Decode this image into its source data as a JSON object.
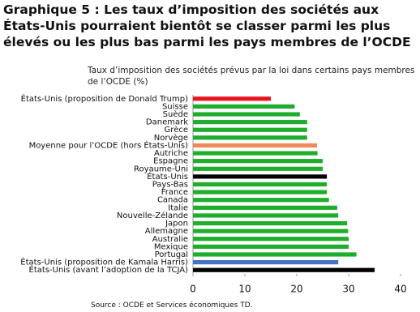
{
  "chart_data": {
    "type": "barh",
    "title": "Graphique 5 : Les taux d’imposition des sociétés aux États-Unis pourraient bientôt se classer parmi les plus élevés ou les plus bas parmi les pays membres de l’OCDE",
    "subtitle": "Taux d’imposition des sociétés prévus par la loi dans certains pays membres de l’OCDE (%)",
    "source": "Source : OCDE et Services économiques TD.",
    "categories": [
      "États-Unis (proposition de Donald Trump)",
      "Suisse",
      "Suède",
      "Danemark",
      "Grèce",
      "Norvège",
      "Moyenne pour l’OCDE (hors États-Unis)",
      "Autriche",
      "Espagne",
      "Royaume-Uni",
      "États-Unis",
      "Pays-Bas",
      "France",
      "Canada",
      "Italie",
      "Nouvelle-Zélande",
      "Japon",
      "Allemagne",
      "Australie",
      "Mexique",
      "Portugal",
      "États-Unis (proposition de Kamala Harris)",
      "États-Unis (avant l’adoption de la TCJA)"
    ],
    "values": [
      15,
      19.6,
      20.6,
      22,
      22,
      22,
      23.9,
      24,
      25,
      25,
      25.8,
      25.8,
      25.8,
      26.2,
      27.8,
      28,
      29.7,
      29.9,
      30,
      30,
      31.5,
      28,
      35
    ],
    "colors": [
      "#e8141b",
      "#1fae2c",
      "#1fae2c",
      "#1fae2c",
      "#1fae2c",
      "#1fae2c",
      "#f08a5d",
      "#1fae2c",
      "#1fae2c",
      "#1fae2c",
      "#000000",
      "#1fae2c",
      "#1fae2c",
      "#1fae2c",
      "#1fae2c",
      "#1fae2c",
      "#1fae2c",
      "#1fae2c",
      "#1fae2c",
      "#1fae2c",
      "#1fae2c",
      "#4472c4",
      "#000000"
    ],
    "xlim": [
      0,
      40
    ],
    "xticks": [
      0,
      10,
      20,
      30,
      40
    ]
  }
}
